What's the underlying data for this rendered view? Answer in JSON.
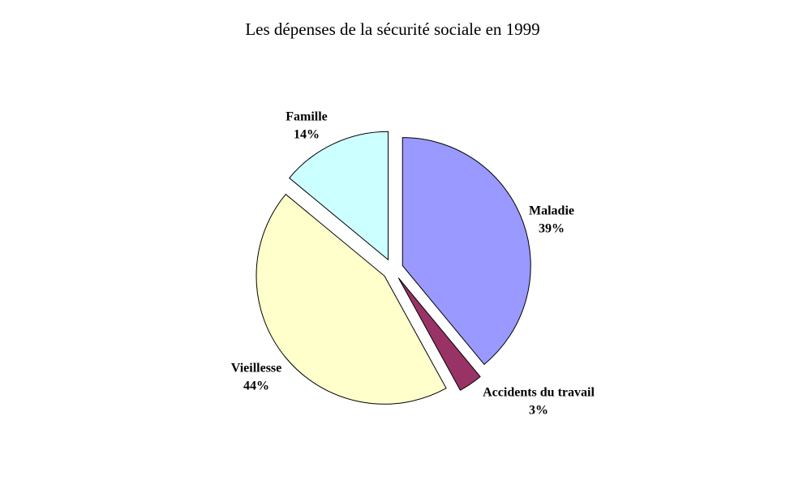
{
  "chart_data": {
    "type": "pie",
    "title": "Les dépenses de la sécurité sociale en 1999",
    "categories": [
      "Maladie",
      "Accidents du travail",
      "Vieillesse",
      "Famille"
    ],
    "values": [
      39,
      3,
      44,
      14
    ],
    "value_labels": [
      "39%",
      "3%",
      "44%",
      "14%"
    ],
    "colors": [
      "#9999ff",
      "#993366",
      "#ffffcc",
      "#ccffff"
    ]
  }
}
